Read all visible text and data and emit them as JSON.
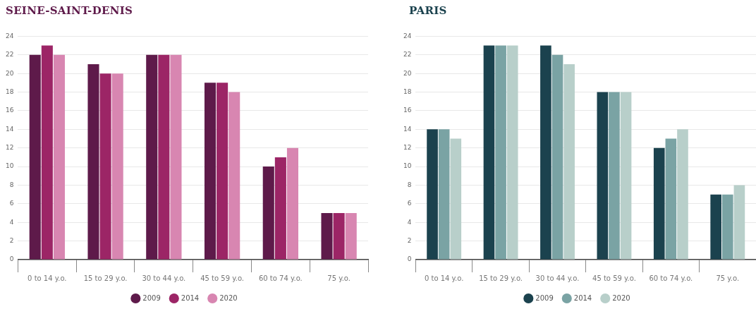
{
  "chart_data": [
    {
      "type": "bar",
      "title": "SEINE-SAINT-DENIS",
      "categories": [
        "0 to 14 y.o.",
        "15 to 29 y.o.",
        "30 to 44 y.o.",
        "45 to 59 y.o.",
        "60 to 74 y.o.",
        "75 y.o."
      ],
      "series": [
        {
          "name": "2009",
          "color": "#5e1a4a",
          "values": [
            22,
            21,
            22,
            19,
            10,
            5
          ]
        },
        {
          "name": "2014",
          "color": "#9c2566",
          "values": [
            23,
            20,
            22,
            19,
            11,
            5
          ]
        },
        {
          "name": "2020",
          "color": "#d886b1",
          "values": [
            22,
            20,
            22,
            18,
            12,
            5
          ]
        }
      ],
      "ylim": [
        0,
        24
      ],
      "yticks": [
        0,
        2,
        4,
        6,
        8,
        10,
        12,
        14,
        16,
        18,
        20,
        22,
        24
      ],
      "grid": "y",
      "legend": "bottom"
    },
    {
      "type": "bar",
      "title": "PARIS",
      "categories": [
        "0 to 14 y.o.",
        "15 to 29 y.o.",
        "30 to 44 y.o.",
        "45 to 59 y.o.",
        "60 to 74 y.o.",
        "75 y.o."
      ],
      "series": [
        {
          "name": "2009",
          "color": "#1b424e",
          "values": [
            14,
            23,
            23,
            18,
            12,
            7
          ]
        },
        {
          "name": "2014",
          "color": "#7aa3a4",
          "values": [
            14,
            23,
            22,
            18,
            13,
            7
          ]
        },
        {
          "name": "2020",
          "color": "#b8cfca",
          "values": [
            13,
            23,
            21,
            18,
            14,
            8
          ]
        }
      ],
      "ylim": [
        0,
        24
      ],
      "yticks": [
        0,
        2,
        4,
        6,
        8,
        10,
        12,
        14,
        16,
        18,
        20,
        22,
        24
      ],
      "grid": "y",
      "legend": "bottom"
    }
  ]
}
